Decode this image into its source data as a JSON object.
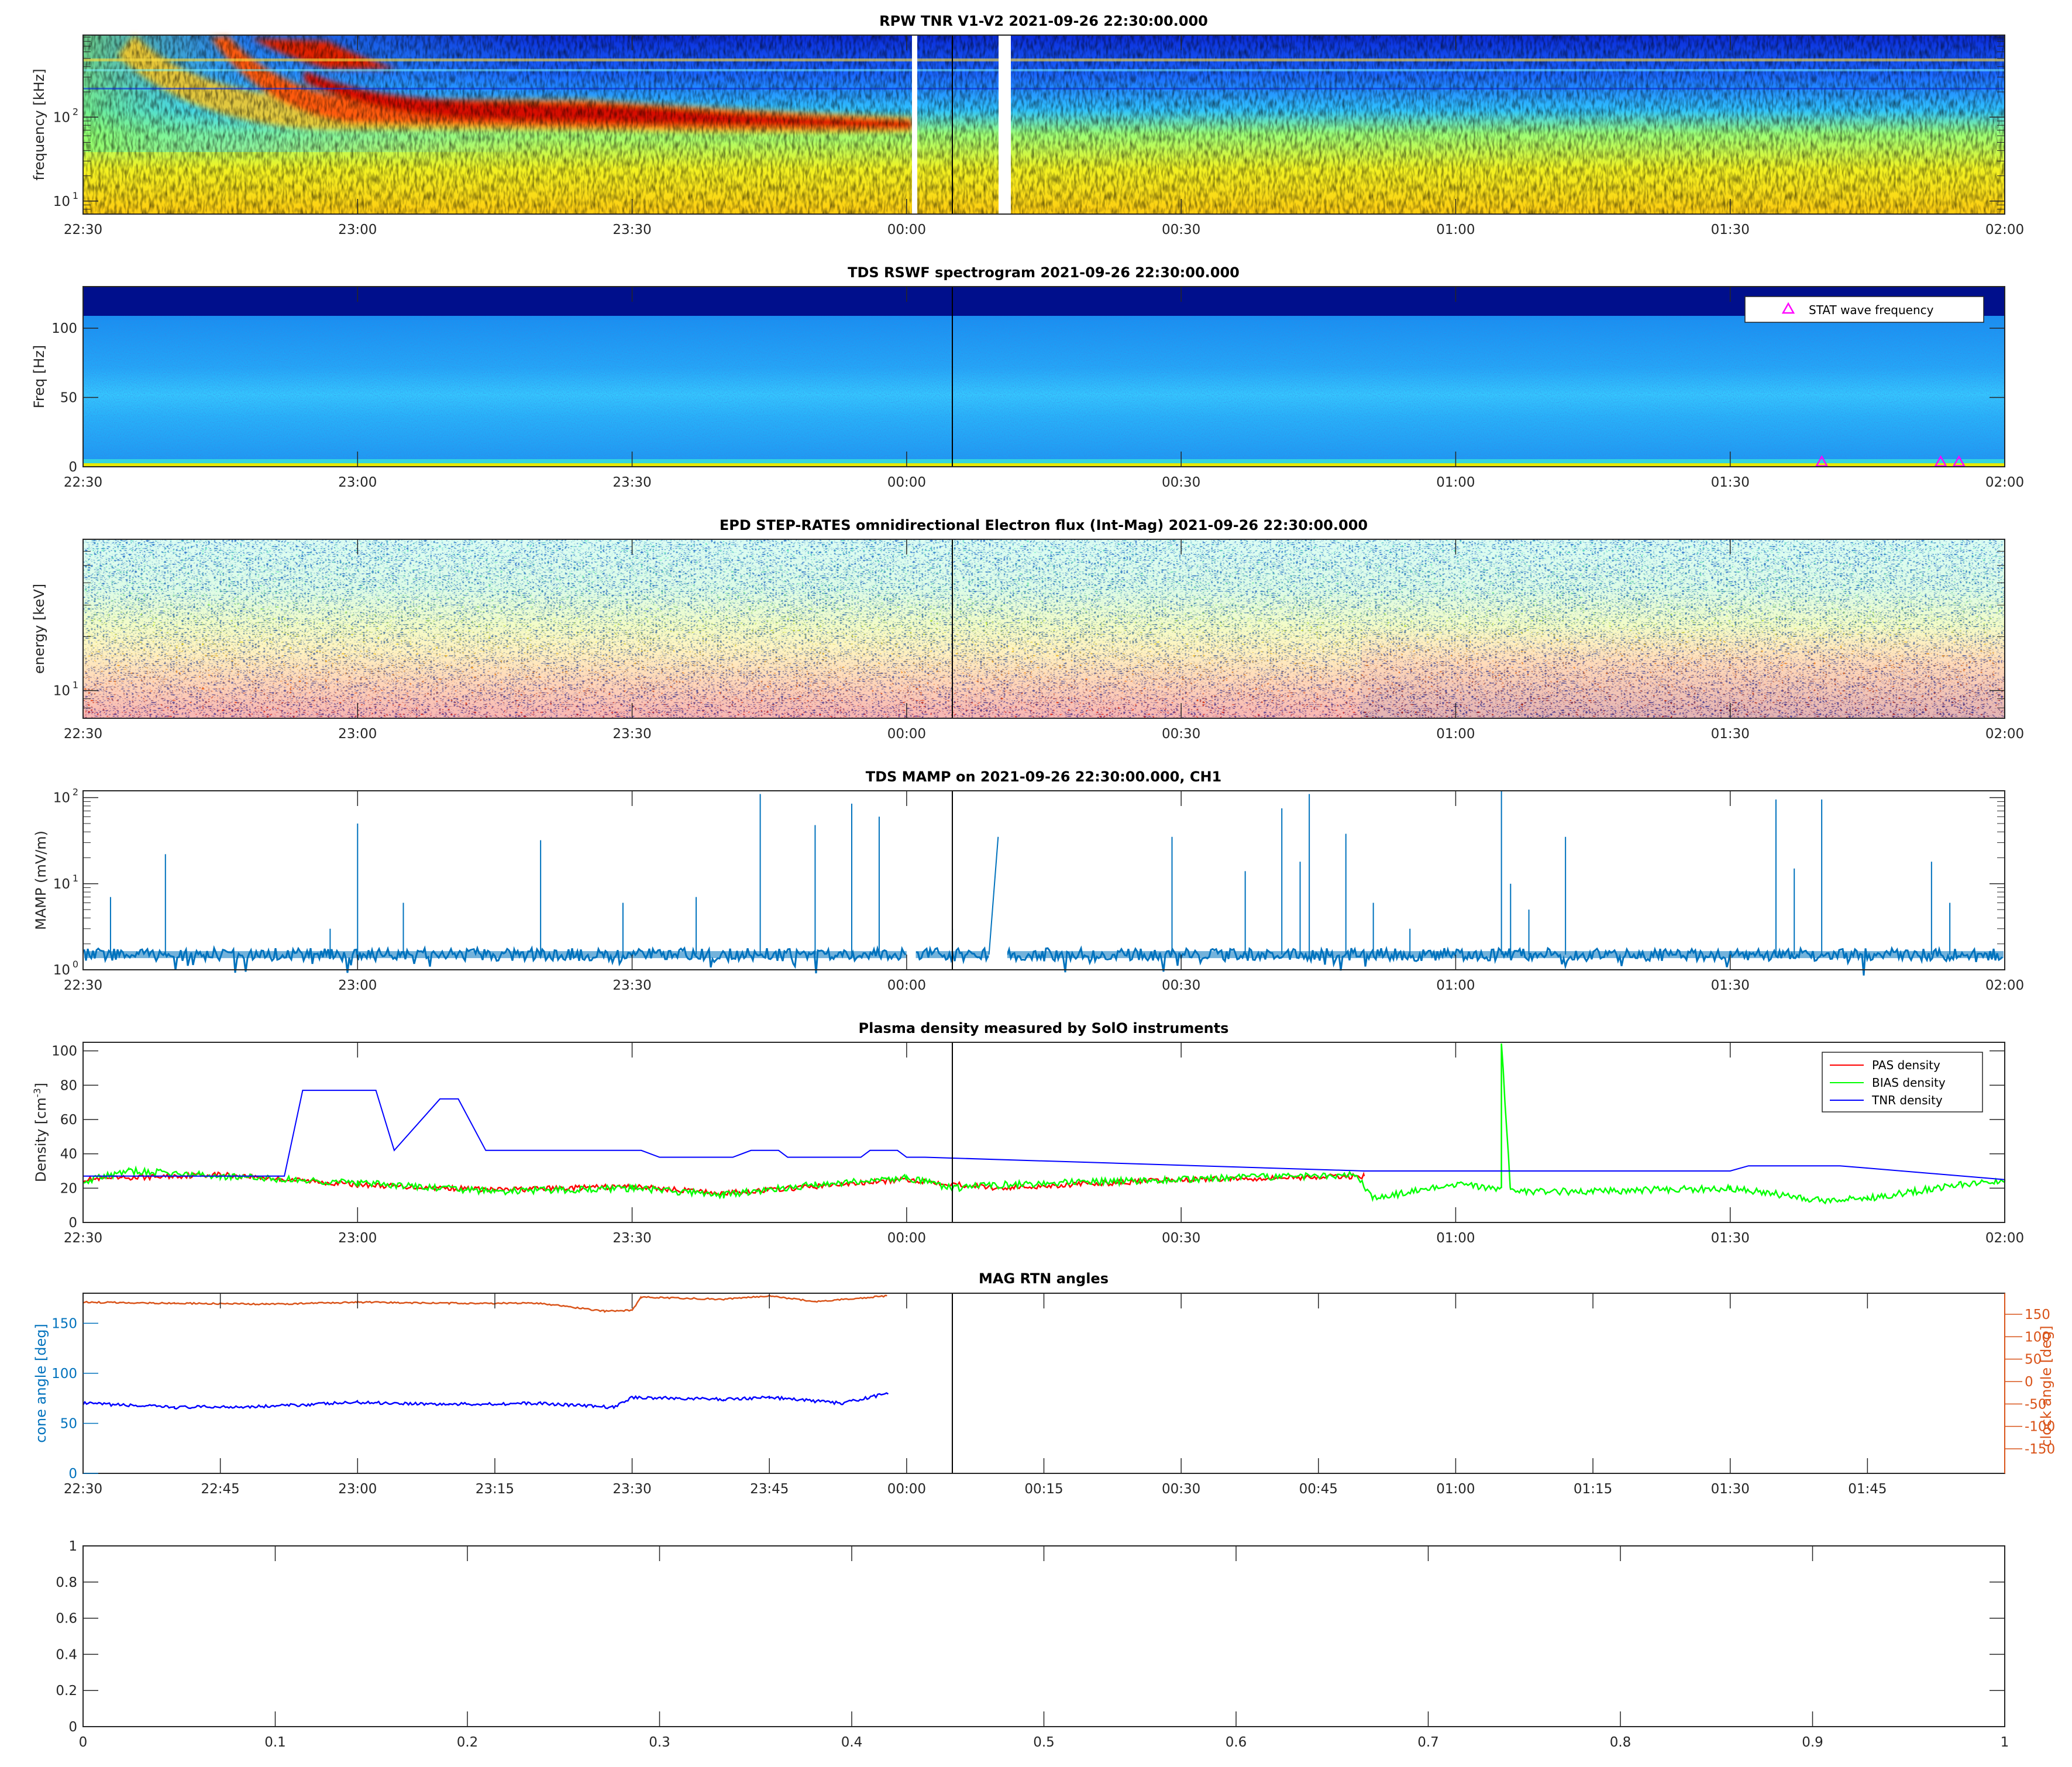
{
  "colors": {
    "axis": "#262626",
    "mamp": "#0072BD",
    "pas": "#ff0000",
    "bias": "#00ff00",
    "tnr": "#0000ff",
    "cone": "#0072BD",
    "clock": "#D95319",
    "stat_marker": "#ff00ff"
  },
  "chart_data": [
    {
      "type": "heatmap",
      "title": "RPW TNR V1-V2 2021-09-26 22:30:00.000",
      "ylabel": "frequency [kHz]",
      "xlabel": "",
      "yscale": "log",
      "ylim": [
        7,
        950
      ],
      "xlim": [
        "22:30",
        "02:00"
      ],
      "xticks": [
        "22:30",
        "23:00",
        "23:30",
        "00:00",
        "00:30",
        "01:00",
        "01:30",
        "02:00"
      ],
      "yticks": [
        {
          "base": "10",
          "exp": "1"
        },
        {
          "base": "10",
          "exp": "2"
        }
      ],
      "features": "type III-like drifting bright band from ~500 kHz down to ~60 kHz between 22:45 and 00:00; data gaps near 00:01 and 00:10",
      "gaps": [
        [
          "00:00:30",
          "00:01:30"
        ],
        [
          "00:10:00",
          "00:11:30"
        ]
      ]
    },
    {
      "type": "heatmap",
      "title": "TDS RSWF spectrogram 2021-09-26 22:30:00.000",
      "ylabel": "Freq [Hz]",
      "xlabel": "",
      "ylim": [
        0,
        130
      ],
      "xlim": [
        "22:30",
        "02:00"
      ],
      "xticks": [
        "22:30",
        "23:00",
        "23:30",
        "00:00",
        "00:30",
        "01:00",
        "01:30",
        "02:00"
      ],
      "yticks": [
        "0",
        "50",
        "100"
      ],
      "vertical_marker": "00:05",
      "legend": [
        "STAT wave frequency"
      ],
      "stat_points": [
        {
          "x": "01:40",
          "y": 1
        },
        {
          "x": "01:53",
          "y": 1
        },
        {
          "x": "01:55",
          "y": 1
        }
      ]
    },
    {
      "type": "heatmap",
      "title": "EPD STEP-RATES omnidirectional Electron flux (Int-Mag) 2021-09-26 22:30:00.000",
      "ylabel": "energy [keV]",
      "xlabel": "",
      "yscale": "log",
      "ylim": [
        7,
        70
      ],
      "xlim": [
        "22:30",
        "02:00"
      ],
      "xticks": [
        "22:30",
        "23:00",
        "23:30",
        "00:00",
        "00:30",
        "01:00",
        "01:30",
        "02:00"
      ],
      "yticks": [
        {
          "base": "10",
          "exp": "1"
        }
      ],
      "vertical_marker": "00:05",
      "features": "flux enhancement at low energies after ~00:50"
    },
    {
      "type": "line",
      "title": "TDS MAMP on 2021-09-26 22:30:00.000, CH1",
      "ylabel": "MAMP (mV/m)",
      "xlabel": "",
      "yscale": "log",
      "ylim": [
        1,
        120
      ],
      "xlim": [
        "22:30",
        "02:00"
      ],
      "xticks": [
        "22:30",
        "23:00",
        "23:30",
        "00:00",
        "00:30",
        "01:00",
        "01:30",
        "02:00"
      ],
      "yticks": [
        {
          "base": "10",
          "exp": "0"
        },
        {
          "base": "10",
          "exp": "1"
        },
        {
          "base": "10",
          "exp": "2"
        }
      ],
      "vertical_marker": "00:05",
      "baseline": 1.5,
      "gaps": [
        [
          "00:00",
          "00:01"
        ],
        [
          "00:09",
          "00:11"
        ]
      ],
      "spikes": [
        {
          "x": "22:33",
          "v": 7
        },
        {
          "x": "22:39",
          "v": 22
        },
        {
          "x": "22:57",
          "v": 3
        },
        {
          "x": "23:00",
          "v": 50
        },
        {
          "x": "23:05",
          "v": 6
        },
        {
          "x": "23:20",
          "v": 32
        },
        {
          "x": "23:29",
          "v": 6
        },
        {
          "x": "23:37",
          "v": 7
        },
        {
          "x": "23:44",
          "v": 110
        },
        {
          "x": "23:50",
          "v": 48
        },
        {
          "x": "23:54",
          "v": 85
        },
        {
          "x": "23:57",
          "v": 60
        },
        {
          "x": "00:05",
          "v": 3
        },
        {
          "x": "00:29",
          "v": 35
        },
        {
          "x": "00:37",
          "v": 14
        },
        {
          "x": "00:41",
          "v": 75
        },
        {
          "x": "00:43",
          "v": 18
        },
        {
          "x": "00:44",
          "v": 110
        },
        {
          "x": "00:48",
          "v": 38
        },
        {
          "x": "00:51",
          "v": 6
        },
        {
          "x": "00:55",
          "v": 3
        },
        {
          "x": "01:05",
          "v": 120
        },
        {
          "x": "01:06",
          "v": 10
        },
        {
          "x": "01:08",
          "v": 5
        },
        {
          "x": "01:12",
          "v": 35
        },
        {
          "x": "01:35",
          "v": 95
        },
        {
          "x": "01:37",
          "v": 15
        },
        {
          "x": "01:40",
          "v": 95
        },
        {
          "x": "01:52",
          "v": 18
        },
        {
          "x": "01:54",
          "v": 6
        }
      ]
    },
    {
      "type": "line",
      "title": "Plasma density measured by SolO instruments",
      "ylabel": "Density [cm^-3]",
      "xlabel": "",
      "ylim": [
        0,
        105
      ],
      "xlim": [
        "22:30",
        "02:00"
      ],
      "xticks": [
        "22:30",
        "23:00",
        "23:30",
        "00:00",
        "00:30",
        "01:00",
        "01:30",
        "02:00"
      ],
      "yticks": [
        "0",
        "20",
        "40",
        "60",
        "80",
        "100"
      ],
      "vertical_marker": "00:05",
      "series": [
        {
          "name": "PAS density",
          "color": "#ff0000",
          "x": [
            "22:30",
            "22:45",
            "23:00",
            "23:15",
            "23:30",
            "23:40",
            "23:50",
            "00:00",
            "00:10",
            "00:30",
            "00:50"
          ],
          "y": [
            25,
            28,
            22,
            19,
            21,
            17,
            21,
            25,
            20,
            25,
            27
          ]
        },
        {
          "name": "BIAS density",
          "color": "#00ff00",
          "x": [
            "22:30",
            "22:35",
            "22:45",
            "23:00",
            "23:15",
            "23:30",
            "23:40",
            "23:50",
            "00:00",
            "00:05",
            "00:10",
            "00:30",
            "00:49",
            "00:51",
            "01:00",
            "01:05",
            "01:05",
            "01:06",
            "01:15",
            "01:30",
            "01:40",
            "01:45",
            "01:55",
            "02:00"
          ],
          "y": [
            24,
            30,
            27,
            23,
            18,
            20,
            16,
            22,
            26,
            20,
            22,
            25,
            28,
            14,
            22,
            20,
            105,
            18,
            18,
            20,
            13,
            14,
            22,
            25
          ]
        },
        {
          "name": "TNR density",
          "color": "#0000ff",
          "x": [
            "22:30",
            "22:52",
            "22:54",
            "23:02",
            "23:04",
            "23:09",
            "23:11",
            "23:14",
            "23:31",
            "23:33",
            "23:41",
            "23:43",
            "23:46",
            "23:47",
            "23:55",
            "23:56",
            "23:59",
            "00:00",
            "00:02",
            "00:50",
            "01:30",
            "01:32",
            "01:42",
            "02:00"
          ],
          "y": [
            27,
            27,
            77,
            77,
            42,
            72,
            72,
            42,
            42,
            38,
            38,
            42,
            42,
            38,
            38,
            42,
            42,
            38,
            38,
            30,
            30,
            33,
            33,
            25
          ]
        }
      ]
    },
    {
      "type": "line",
      "title": "MAG RTN angles",
      "ylabel": "cone angle [deg]",
      "ylabel_right": "clock angle [deg]",
      "xlabel": "",
      "ylim": [
        0,
        180
      ],
      "ylim_right": [
        -180,
        180
      ],
      "xlim": [
        "22:30",
        "02:00"
      ],
      "xticks": [
        "22:30",
        "22:45",
        "23:00",
        "23:15",
        "23:30",
        "23:45",
        "00:00",
        "00:15",
        "00:30",
        "00:45",
        "01:00",
        "01:15",
        "01:30",
        "01:45"
      ],
      "yticks": [
        "0",
        "50",
        "100",
        "150"
      ],
      "yticks_right": [
        "150",
        "100",
        "50",
        "0",
        "-50",
        "-100",
        "-150"
      ],
      "vertical_marker": "00:05",
      "series": [
        {
          "name": "cone angle",
          "axis": "left",
          "color": "#0000ff",
          "x": [
            "22:30",
            "22:40",
            "22:50",
            "23:00",
            "23:10",
            "23:20",
            "23:28",
            "23:30",
            "23:40",
            "23:45",
            "23:53",
            "23:58"
          ],
          "y": [
            70,
            66,
            67,
            71,
            69,
            70,
            66,
            76,
            74,
            76,
            70,
            80
          ]
        },
        {
          "name": "clock angle",
          "axis": "right",
          "color": "#D95319",
          "x": [
            "22:30",
            "22:40",
            "22:50",
            "23:00",
            "23:10",
            "23:20",
            "23:27",
            "23:30",
            "23:31",
            "23:40",
            "23:45",
            "23:50",
            "23:58"
          ],
          "y": [
            162,
            160,
            158,
            162,
            160,
            160,
            144,
            146,
            172,
            168,
            175,
            163,
            175
          ]
        }
      ]
    },
    {
      "type": "line",
      "title": "",
      "xlabel": "",
      "ylabel": "",
      "xlim": [
        0,
        1
      ],
      "ylim": [
        0,
        1
      ],
      "xticks": [
        "0",
        "0.1",
        "0.2",
        "0.3",
        "0.4",
        "0.5",
        "0.6",
        "0.7",
        "0.8",
        "0.9",
        "1"
      ],
      "yticks": [
        "0",
        "0.2",
        "0.4",
        "0.6",
        "0.8",
        "1"
      ],
      "series": []
    }
  ]
}
